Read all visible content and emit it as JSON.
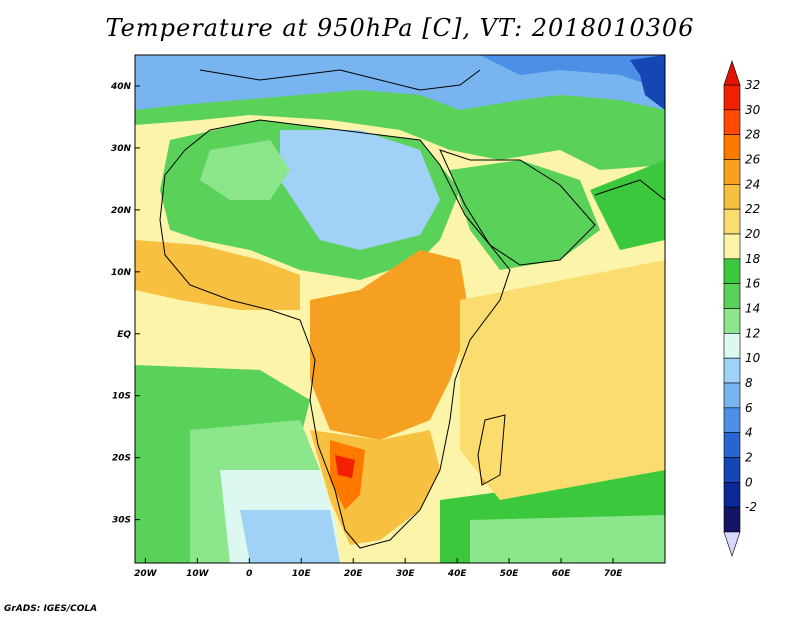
{
  "title": "Temperature at 950hPa [C], VT: 2018010306",
  "footer": "GrADS: IGES/COLA",
  "map": {
    "lon_range": [
      -22,
      80
    ],
    "lat_range": [
      -37,
      45
    ],
    "x_ticks": [
      "20W",
      "10W",
      "0",
      "10E",
      "20E",
      "30E",
      "40E",
      "50E",
      "60E",
      "70E"
    ],
    "y_ticks": [
      "40N",
      "30N",
      "20N",
      "10N",
      "EQ",
      "10S",
      "20S",
      "30S"
    ]
  },
  "colorbar": {
    "labels": [
      "32",
      "30",
      "28",
      "26",
      "24",
      "22",
      "20",
      "18",
      "16",
      "14",
      "12",
      "10",
      "8",
      "6",
      "4",
      "2",
      "0",
      "-2"
    ],
    "colors": [
      "#f02000",
      "#ff4a00",
      "#ff7800",
      "#f5a020",
      "#f8c040",
      "#fbdc6e",
      "#fcf4a8",
      "#3cc83c",
      "#5ad25a",
      "#8ce68c",
      "#dcf8f0",
      "#a0d2f8",
      "#78b4f0",
      "#4b8fe6",
      "#2864d2",
      "#1446b4",
      "#0a2896",
      "#141464"
    ],
    "top_arrow_color": "#e01400",
    "bottom_arrow_color": "#d8d8ff"
  }
}
